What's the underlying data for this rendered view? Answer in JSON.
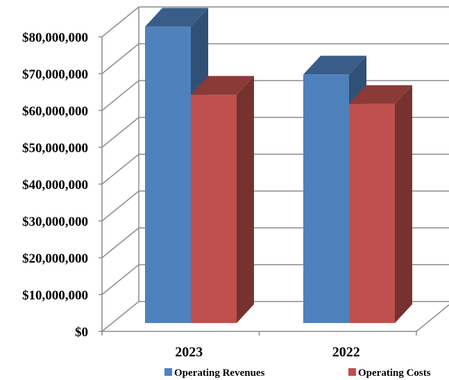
{
  "chart_data": {
    "type": "bar",
    "categories": [
      "2023",
      "2022"
    ],
    "series": [
      {
        "name": "Operating Revenues",
        "values": [
          80500000,
          67500000
        ],
        "color": "#4F81BD"
      },
      {
        "name": "Operating Costs",
        "values": [
          62000000,
          59500000
        ],
        "color": "#C0504D"
      }
    ],
    "y_ticks": [
      "$0",
      "$10,000,000",
      "$20,000,000",
      "$30,000,000",
      "$40,000,000",
      "$50,000,000",
      "$60,000,000",
      "$70,000,000",
      "$80,000,000"
    ],
    "ylim": [
      0,
      80000000
    ],
    "grid": true,
    "legend_placement": "bottom",
    "style": "3d-clustered"
  }
}
